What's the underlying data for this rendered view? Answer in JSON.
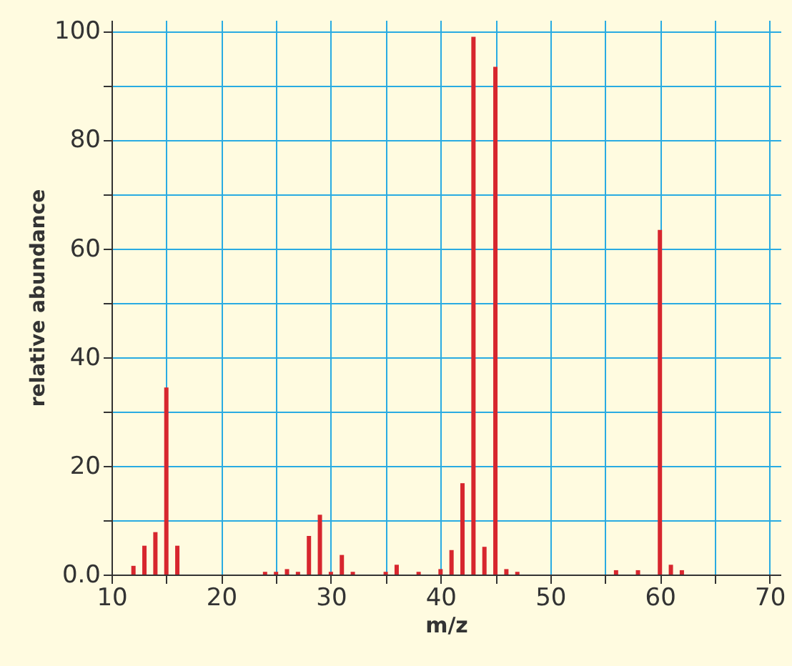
{
  "chart_data": {
    "type": "bar",
    "xlabel": "m/z",
    "ylabel": "relative abundance",
    "color": "#d7262e",
    "x": [
      12,
      13,
      14,
      15,
      16,
      24,
      25,
      26,
      27,
      28,
      29,
      30,
      31,
      32,
      35,
      36,
      38,
      40,
      41,
      42,
      43,
      44,
      45,
      46,
      47,
      56,
      58,
      60,
      61,
      62
    ],
    "values": [
      1.6,
      5.3,
      7.8,
      34.4,
      5.3,
      0.5,
      0.5,
      1.0,
      0.5,
      7.1,
      11.0,
      0.5,
      3.6,
      0.5,
      0.5,
      1.8,
      0.5,
      1.0,
      4.5,
      16.8,
      98.9,
      5.1,
      93.4,
      1.0,
      0.5,
      0.8,
      0.8,
      63.4,
      1.8,
      0.8
    ],
    "xlim": [
      10,
      71
    ],
    "ylim": [
      0,
      102
    ],
    "xticks": [
      10,
      {
        "value": 15,
        "label": null
      },
      20,
      {
        "value": 25,
        "label": null
      },
      30,
      {
        "value": 35,
        "label": null
      },
      40,
      {
        "value": 45,
        "label": null
      },
      50,
      {
        "value": 55,
        "label": null
      },
      60,
      {
        "value": 65,
        "label": null
      },
      70
    ],
    "yticks": [
      {
        "value": 0,
        "label": "0.0"
      },
      {
        "value": 10,
        "label": null
      },
      20,
      {
        "value": 30,
        "label": null
      },
      40,
      {
        "value": 50,
        "label": null
      },
      60,
      {
        "value": 70,
        "label": null
      },
      80,
      {
        "value": 90,
        "label": null
      },
      100
    ],
    "grid": true
  }
}
